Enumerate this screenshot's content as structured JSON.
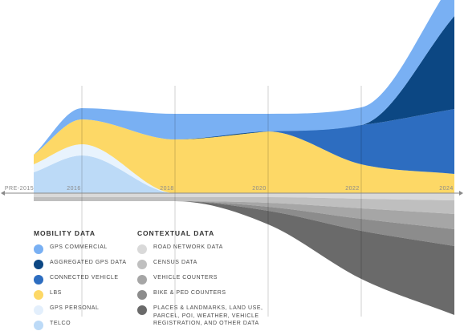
{
  "chart_data": {
    "type": "area",
    "x": [
      "PRE-2015",
      "2016",
      "2018",
      "2020",
      "2022",
      "2024"
    ],
    "legend_titles": {
      "mobility": "MOBILITY DATA",
      "contextual": "CONTEXTUAL DATA"
    },
    "series": [
      {
        "name": "TELCO",
        "group": "mobility",
        "color": "#bcdaf7",
        "values": [
          26,
          47,
          0,
          0,
          0,
          0
        ]
      },
      {
        "name": "GPS PERSONAL",
        "group": "mobility",
        "color": "#e8f3fd",
        "values": [
          10,
          14,
          0,
          0,
          0,
          0
        ]
      },
      {
        "name": "LBS",
        "group": "mobility",
        "color": "#fdd866",
        "values": [
          12,
          31,
          67,
          77,
          36,
          24
        ]
      },
      {
        "name": "CONNECTED VEHICLE",
        "group": "mobility",
        "color": "#2d6dc0",
        "values": [
          0,
          0,
          0,
          0,
          49,
          81
        ]
      },
      {
        "name": "AGGREGATED GPS DATA",
        "group": "mobility",
        "color": "#0c4783",
        "values": [
          0,
          0,
          0,
          0,
          0,
          116
        ]
      },
      {
        "name": "GPS COMMERCIAL",
        "group": "mobility",
        "color": "#79b0f3",
        "values": [
          0,
          14,
          32,
          22,
          22,
          46
        ]
      },
      {
        "name": "ROAD NETWORK DATA",
        "group": "contextual",
        "color": "#d9d9d9",
        "values": [
          5,
          5,
          5,
          5,
          7,
          9
        ]
      },
      {
        "name": "CENSUS DATA",
        "group": "contextual",
        "color": "#bfbfbf",
        "values": [
          5,
          5,
          5,
          7,
          12,
          17
        ]
      },
      {
        "name": "VEHICLE COUNTERS",
        "group": "contextual",
        "color": "#a6a6a6",
        "values": [
          0,
          0,
          0,
          5,
          13,
          19
        ]
      },
      {
        "name": "BIKE & PED COUNTERS",
        "group": "contextual",
        "color": "#8c8c8c",
        "values": [
          0,
          0,
          0,
          5,
          15,
          21
        ]
      },
      {
        "name": "PLACES & LANDMARKS, LAND USE, PARCEL, POI, WEATHER, VEHICLE REGISTRATION, AND OTHER DATA",
        "group": "contextual",
        "color": "#6a6a6a",
        "values": [
          0,
          0,
          0,
          17,
          60,
          86
        ]
      }
    ]
  }
}
